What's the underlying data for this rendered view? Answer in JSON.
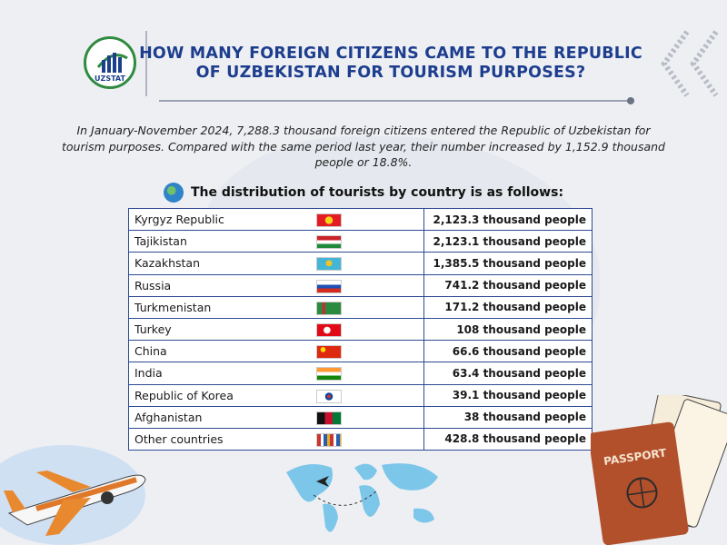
{
  "logo": {
    "text": "UZSTAT",
    "icon": "building-bars-logo-icon"
  },
  "title": {
    "line1": "HOW MANY FOREIGN CITIZENS CAME TO THE REPUBLIC",
    "line2": "OF UZBEKISTAN FOR TOURISM PURPOSES?"
  },
  "intro": "In January-November 2024, 7,288.3 thousand foreign citizens entered the Republic of Uzbekistan for tourism purposes. Compared with the same period last year, their number increased by 1,152.9 thousand people or 18.8%.",
  "distribution_heading": "The distribution of tourists by country is as follows:",
  "rows": [
    {
      "country": "Kyrgyz Republic",
      "value": "2,123.3 thousand people",
      "flag": "flag-kyrgyzstan-icon"
    },
    {
      "country": "Tajikistan",
      "value": "2,123.1 thousand people",
      "flag": "flag-tajikistan-icon"
    },
    {
      "country": "Kazakhstan",
      "value": "1,385.5 thousand people",
      "flag": "flag-kazakhstan-icon"
    },
    {
      "country": "Russia",
      "value": "741.2 thousand people",
      "flag": "flag-russia-icon"
    },
    {
      "country": "Turkmenistan",
      "value": "171.2 thousand people",
      "flag": "flag-turkmenistan-icon"
    },
    {
      "country": "Turkey",
      "value": "108 thousand people",
      "flag": "flag-turkey-icon"
    },
    {
      "country": "China",
      "value": "66.6 thousand people",
      "flag": "flag-china-icon"
    },
    {
      "country": "India",
      "value": "63.4 thousand people",
      "flag": "flag-india-icon"
    },
    {
      "country": "Republic of Korea",
      "value": "39.1 thousand people",
      "flag": "flag-korea-icon"
    },
    {
      "country": "Afghanistan",
      "value": "38 thousand people",
      "flag": "flag-afghanistan-icon"
    },
    {
      "country": "Other countries",
      "value": "428.8 thousand people",
      "flag": "flags-collage-icon"
    }
  ],
  "colors": {
    "title": "#1d3e8e",
    "table_border": "#2c4a92",
    "background": "#eeeff3"
  }
}
